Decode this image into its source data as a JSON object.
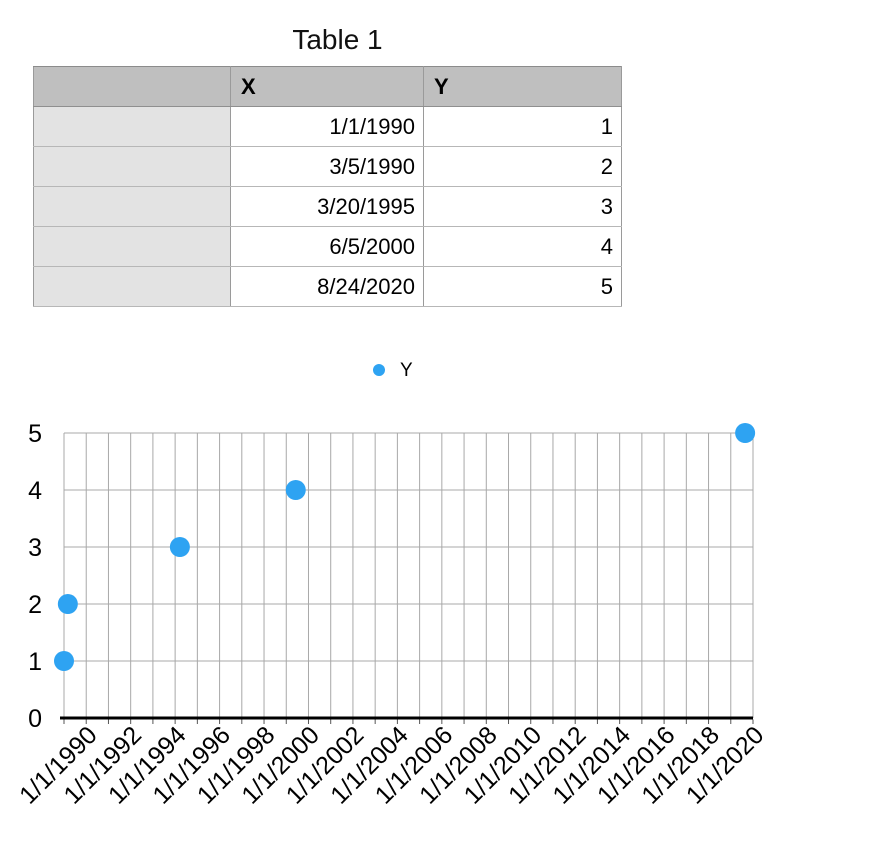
{
  "table": {
    "title": "Table 1",
    "header": {
      "row_label": "",
      "x": "X",
      "y": "Y"
    },
    "rows": [
      {
        "label": "",
        "x": "1/1/1990",
        "y": "1"
      },
      {
        "label": "",
        "x": "3/5/1990",
        "y": "2"
      },
      {
        "label": "",
        "x": "3/20/1995",
        "y": "3"
      },
      {
        "label": "",
        "x": "6/5/2000",
        "y": "4"
      },
      {
        "label": "",
        "x": "8/24/2020",
        "y": "5"
      }
    ],
    "colors": {
      "header_bg": "#bfbfbf",
      "row_header_bg": "#e3e3e3",
      "border": "#9a9a9a",
      "row_border": "#b7b7b7"
    }
  },
  "legend": {
    "label": "Y",
    "marker_color": "#2EA3F2"
  },
  "chart_data": {
    "type": "scatter",
    "title": "",
    "xlabel": "",
    "ylabel": "",
    "series": [
      {
        "name": "Y",
        "points": [
          {
            "x": "1/1/1990",
            "y": 1
          },
          {
            "x": "3/5/1990",
            "y": 2
          },
          {
            "x": "3/20/1995",
            "y": 3
          },
          {
            "x": "6/5/2000",
            "y": 4
          },
          {
            "x": "8/24/2020",
            "y": 5
          }
        ]
      }
    ],
    "x_tick_labels": [
      "1/1/1990",
      "1/1/1992",
      "1/1/1994",
      "1/1/1996",
      "1/1/1998",
      "1/1/2000",
      "1/1/2002",
      "1/1/2004",
      "1/1/2006",
      "1/1/2008",
      "1/1/2010",
      "1/1/2012",
      "1/1/2014",
      "1/1/2016",
      "1/1/2018",
      "1/1/2020"
    ],
    "y_tick_labels": [
      "0",
      "1",
      "2",
      "3",
      "4",
      "5"
    ],
    "x_range_years": [
      1990,
      2021
    ],
    "x_gridline_interval_years": 1,
    "ylim": [
      0,
      5
    ],
    "grid": true,
    "legend_position": "top-center",
    "marker_color": "#2EA3F2",
    "gridline_color": "#a8a8a8",
    "axis_color": "#000000",
    "tick_color": "#555555"
  }
}
